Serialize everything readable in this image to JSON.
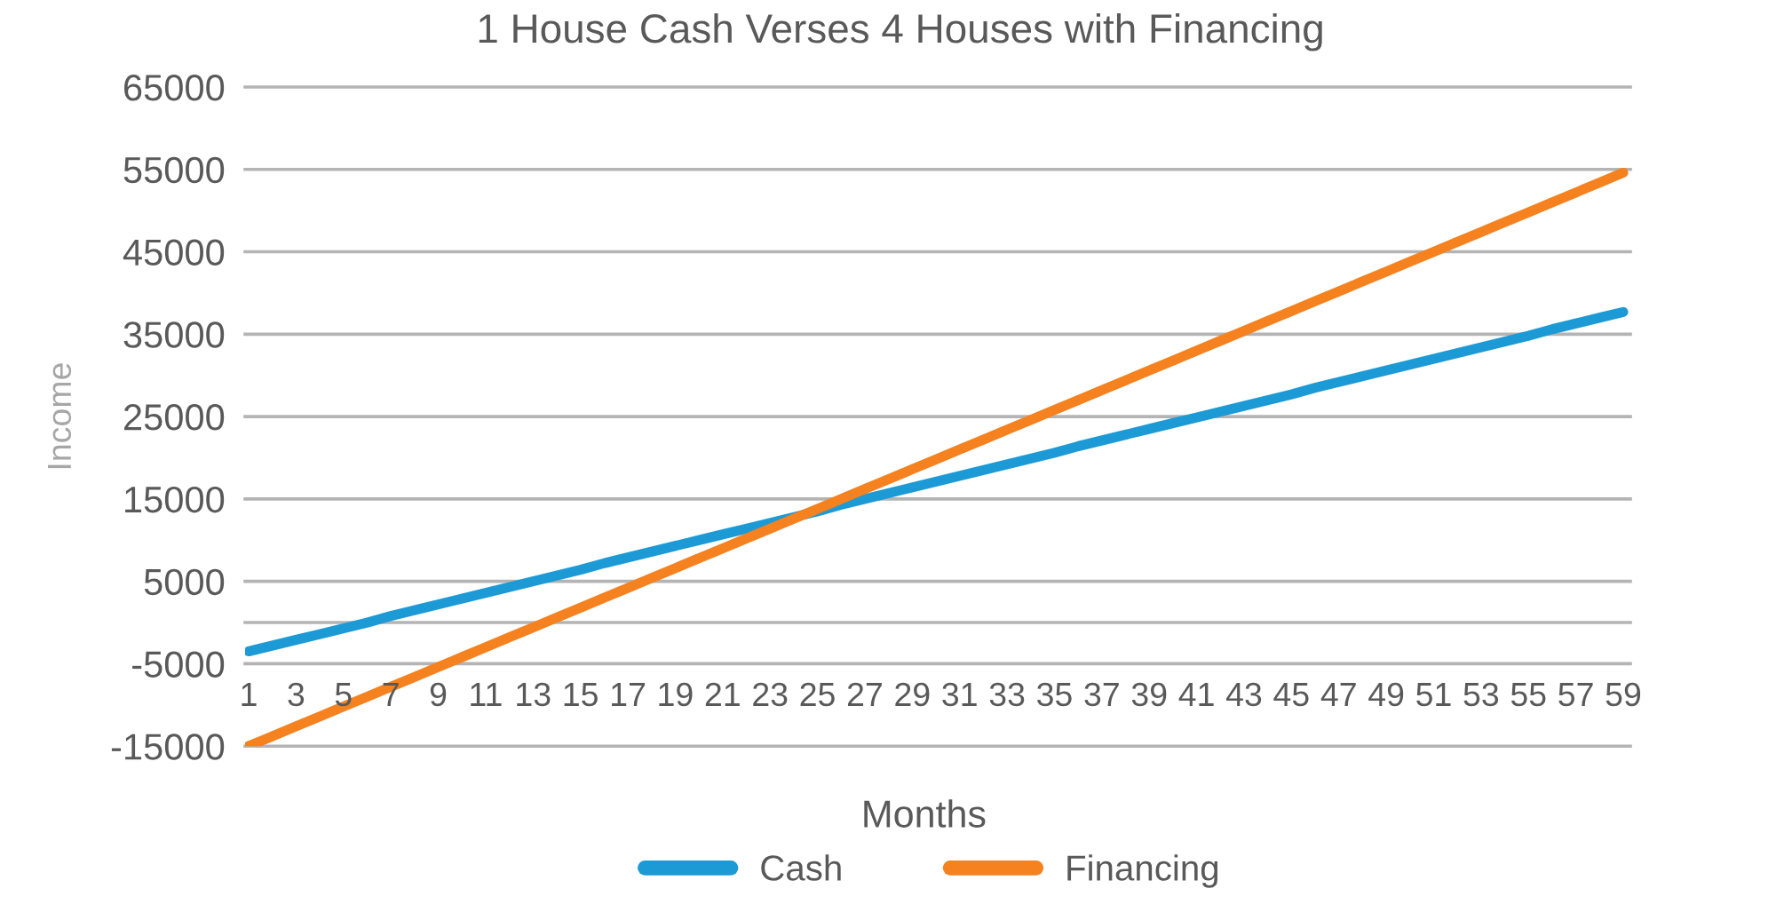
{
  "chart_data": {
    "type": "line",
    "title": "1 House Cash Verses 4 Houses with Financing",
    "xlabel": "Months",
    "ylabel": "Income",
    "categories": [
      "1",
      null,
      "3",
      null,
      "5",
      null,
      "7",
      null,
      "9",
      null,
      "11",
      null,
      "13",
      null,
      "15",
      null,
      "17",
      null,
      "19",
      null,
      "21",
      null,
      "23",
      null,
      "25",
      null,
      "27",
      null,
      "29",
      null,
      "31",
      null,
      "33",
      null,
      "35",
      null,
      "37",
      null,
      "39",
      null,
      "41",
      null,
      "43",
      null,
      "45",
      null,
      "47",
      null,
      "49",
      null,
      "51",
      null,
      "53",
      null,
      "55",
      null,
      "57",
      null,
      "59"
    ],
    "series": [
      {
        "name": "Cash",
        "color": "#1c9ad6",
        "values": [
          -3500,
          -2800,
          -2100,
          -1400,
          -700,
          0,
          800,
          1500,
          2200,
          2900,
          3600,
          4300,
          5000,
          5700,
          6400,
          7200,
          7900,
          8600,
          9300,
          10000,
          10700,
          11400,
          12100,
          12800,
          13500,
          14300,
          15000,
          15700,
          16400,
          17100,
          17800,
          18500,
          19200,
          19900,
          20600,
          21400,
          22100,
          22800,
          23500,
          24200,
          24900,
          25600,
          26300,
          27000,
          27700,
          28500,
          29200,
          29900,
          30600,
          31300,
          32000,
          32700,
          33400,
          34100,
          34800,
          35600,
          36300,
          37000,
          37700
        ]
      },
      {
        "name": "Financing",
        "color": "#f5811f",
        "values": [
          -15000,
          -13800,
          -12600,
          -11400,
          -10200,
          -9000,
          -7800,
          -6600,
          -5400,
          -4200,
          -3000,
          -1800,
          -600,
          600,
          1800,
          3000,
          4200,
          5400,
          6600,
          7800,
          9000,
          10200,
          11400,
          12600,
          13800,
          15000,
          16200,
          17400,
          18600,
          19800,
          21000,
          22200,
          23400,
          24600,
          25800,
          27000,
          28200,
          29400,
          30600,
          31800,
          33000,
          34200,
          35400,
          36600,
          37800,
          39000,
          40200,
          41400,
          42600,
          43800,
          45000,
          46200,
          47400,
          48600,
          49800,
          51000,
          52200,
          53400,
          54600
        ]
      }
    ],
    "ylim": [
      -15000,
      65000
    ],
    "yticks": [
      -15000,
      -5000,
      5000,
      15000,
      25000,
      35000,
      45000,
      55000,
      65000
    ],
    "grid": "y",
    "legend": "bottom",
    "line_style": "solid"
  }
}
